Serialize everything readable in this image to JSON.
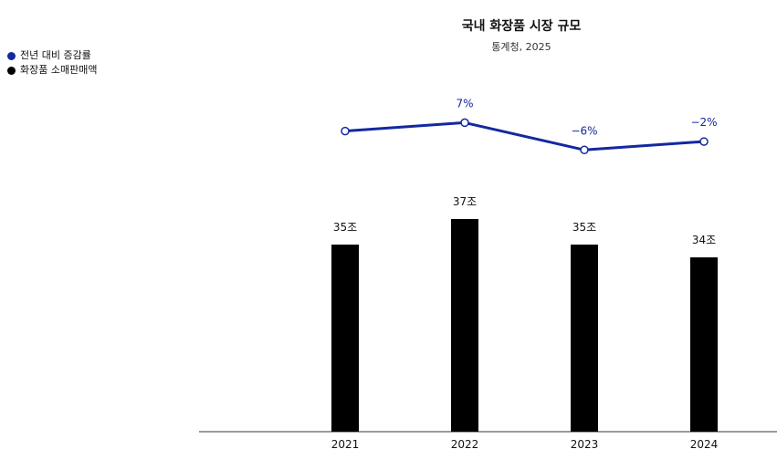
{
  "header": {
    "title": "국내 화장품 시장 규모",
    "subtitle": "통계청, 2025"
  },
  "legend": [
    {
      "label": "전년 대비 증감률",
      "color": "#1428a0"
    },
    {
      "label": "화장품 소매판매액",
      "color": "#000000"
    }
  ],
  "colors": {
    "line": "#1428a0",
    "bar": "#000000",
    "axis": "#333333",
    "label": "#111111"
  },
  "chart_data": {
    "type": "bar+line",
    "categories": [
      "2021",
      "2022",
      "2023",
      "2024"
    ],
    "series": [
      {
        "name": "화장품 소매판매액",
        "type": "bar",
        "values": [
          35,
          37,
          35,
          34
        ],
        "labels": [
          "35조",
          "37조",
          "35조",
          "34조"
        ]
      },
      {
        "name": "전년 대비 증감률",
        "type": "line",
        "values": [
          3,
          7,
          -6,
          -2
        ],
        "labels": [
          "",
          "7%",
          "−6%",
          "−2%"
        ]
      }
    ],
    "legend_position": "top-left",
    "grid": false
  }
}
